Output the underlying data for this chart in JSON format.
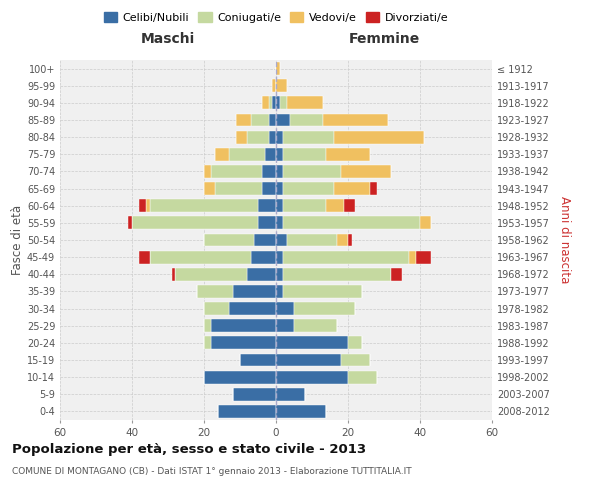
{
  "age_groups": [
    "0-4",
    "5-9",
    "10-14",
    "15-19",
    "20-24",
    "25-29",
    "30-34",
    "35-39",
    "40-44",
    "45-49",
    "50-54",
    "55-59",
    "60-64",
    "65-69",
    "70-74",
    "75-79",
    "80-84",
    "85-89",
    "90-94",
    "95-99",
    "100+"
  ],
  "birth_years": [
    "2008-2012",
    "2003-2007",
    "1998-2002",
    "1993-1997",
    "1988-1992",
    "1983-1987",
    "1978-1982",
    "1973-1977",
    "1968-1972",
    "1963-1967",
    "1958-1962",
    "1953-1957",
    "1948-1952",
    "1943-1947",
    "1938-1942",
    "1933-1937",
    "1928-1932",
    "1923-1927",
    "1918-1922",
    "1913-1917",
    "≤ 1912"
  ],
  "colors": {
    "celibe": "#3a6ea5",
    "coniugato": "#c5d9a0",
    "vedovo": "#f0c060",
    "divorziato": "#cc2222"
  },
  "maschi": {
    "celibe": [
      16,
      12,
      20,
      10,
      18,
      18,
      13,
      12,
      8,
      7,
      6,
      5,
      5,
      4,
      4,
      3,
      2,
      2,
      1,
      0,
      0
    ],
    "coniugato": [
      0,
      0,
      0,
      0,
      2,
      2,
      7,
      10,
      20,
      28,
      14,
      35,
      30,
      13,
      14,
      10,
      6,
      5,
      1,
      0,
      0
    ],
    "vedovo": [
      0,
      0,
      0,
      0,
      0,
      0,
      0,
      0,
      0,
      0,
      0,
      0,
      1,
      3,
      2,
      4,
      3,
      4,
      2,
      1,
      0
    ],
    "divorziato": [
      0,
      0,
      0,
      0,
      0,
      0,
      0,
      0,
      1,
      3,
      0,
      1,
      2,
      0,
      0,
      0,
      0,
      0,
      0,
      0,
      0
    ]
  },
  "femmine": {
    "nubile": [
      14,
      8,
      20,
      18,
      20,
      5,
      5,
      2,
      2,
      2,
      3,
      2,
      2,
      2,
      2,
      2,
      2,
      4,
      1,
      0,
      0
    ],
    "coniugata": [
      0,
      0,
      8,
      8,
      4,
      12,
      17,
      22,
      30,
      35,
      14,
      38,
      12,
      14,
      16,
      12,
      14,
      9,
      2,
      0,
      0
    ],
    "vedova": [
      0,
      0,
      0,
      0,
      0,
      0,
      0,
      0,
      0,
      2,
      3,
      3,
      5,
      10,
      14,
      12,
      25,
      18,
      10,
      3,
      1
    ],
    "divorziata": [
      0,
      0,
      0,
      0,
      0,
      0,
      0,
      0,
      3,
      4,
      1,
      0,
      3,
      2,
      0,
      0,
      0,
      0,
      0,
      0,
      0
    ]
  },
  "title": "Popolazione per età, sesso e stato civile - 2013",
  "subtitle": "COMUNE DI MONTAGANO (CB) - Dati ISTAT 1° gennaio 2013 - Elaborazione TUTTITALIA.IT",
  "xlabel_left": "Maschi",
  "xlabel_right": "Femmine",
  "ylabel_left": "Fasce di età",
  "ylabel_right": "Anni di nascita",
  "xlim": 60,
  "bg_color": "#f0f0f0",
  "grid_color": "#cccccc",
  "legend_labels": [
    "Celibi/Nubili",
    "Coniugati/e",
    "Vedovi/e",
    "Divorziati/e"
  ]
}
